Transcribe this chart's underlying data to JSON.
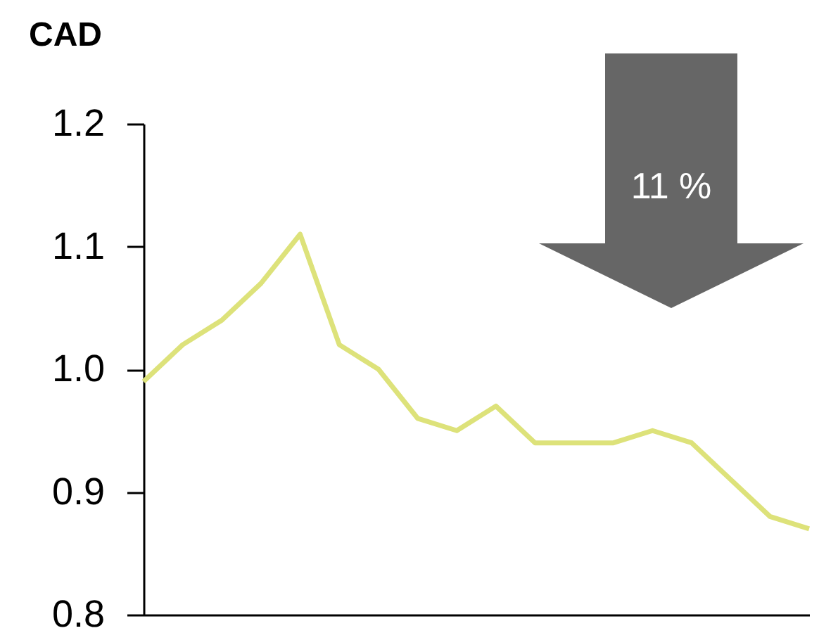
{
  "chart_data": {
    "type": "line",
    "ylabel": "CAD",
    "annotations": [
      "11 %"
    ],
    "categories": [
      null,
      null,
      null,
      null,
      null,
      null,
      null,
      null,
      null,
      null,
      null,
      null,
      null,
      null,
      null,
      null,
      null,
      null
    ],
    "series": [
      {
        "color": "#dde27a",
        "values": [
          0.99,
          1.02,
          1.04,
          1.07,
          1.11,
          1.02,
          1.0,
          0.96,
          0.95,
          0.97,
          0.94,
          0.94,
          0.94,
          0.95,
          0.94,
          0.91,
          0.88,
          0.87
        ]
      }
    ],
    "ylim": [
      0.8,
      1.2
    ],
    "yticks": [
      0.8,
      0.9,
      {
        "value": 1,
        "label": "1.0"
      },
      1.1,
      1.2
    ],
    "grid": false,
    "marker": "none",
    "line_style": "solid"
  }
}
